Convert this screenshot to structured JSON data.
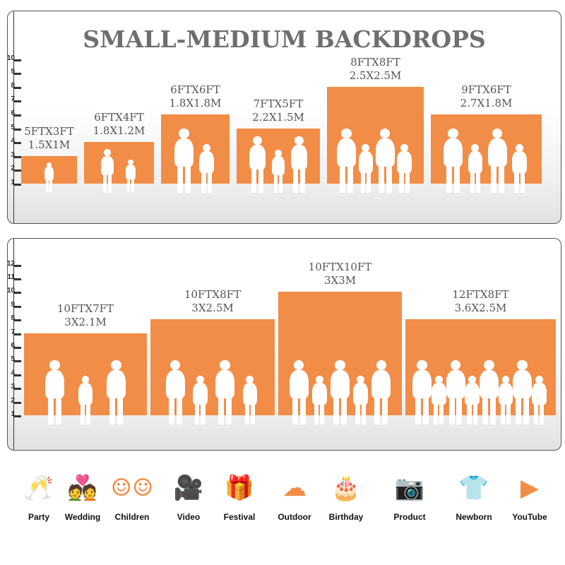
{
  "title": "SMALL-MEDIUM BACKDROPS",
  "accent_color": "#f28d47",
  "panels": [
    {
      "axis_ticks": [
        1,
        2,
        3,
        4,
        5,
        6,
        7,
        8,
        9,
        10
      ],
      "backdrops": [
        {
          "feet": "5FTX3FT",
          "meters": "1.5X1M",
          "height_ft": 3,
          "people": 1
        },
        {
          "feet": "6FTX4FT",
          "meters": "1.8X1.2M",
          "height_ft": 4,
          "people": 2
        },
        {
          "feet": "6FTX6FT",
          "meters": "1.8X1.8M",
          "height_ft": 6,
          "people": 2
        },
        {
          "feet": "7FTX5FT",
          "meters": "2.2X1.5M",
          "height_ft": 5,
          "people": 3
        },
        {
          "feet": "8FTX8FT",
          "meters": "2.5X2.5M",
          "height_ft": 8,
          "people": 4
        },
        {
          "feet": "9FTX6FT",
          "meters": "2.7X1.8M",
          "height_ft": 6,
          "people": 4
        }
      ]
    },
    {
      "axis_ticks": [
        1,
        2,
        3,
        4,
        5,
        6,
        7,
        8,
        9,
        10,
        11,
        12
      ],
      "backdrops": [
        {
          "feet": "10FTX7FT",
          "meters": "3X2.1M",
          "height_ft": 7,
          "people": 3
        },
        {
          "feet": "10FTX8FT",
          "meters": "3X2.5M",
          "height_ft": 8,
          "people": 4
        },
        {
          "feet": "10FTX10FT",
          "meters": "3X3M",
          "height_ft": 10,
          "people": 5
        },
        {
          "feet": "12FTX8FT",
          "meters": "3.6X2.5M",
          "height_ft": 8,
          "people": 8
        }
      ]
    }
  ],
  "uses": [
    {
      "label": "Party",
      "icon": "champagne-glasses-icon",
      "glyph": "🥂"
    },
    {
      "label": "Wedding",
      "icon": "wedding-couple-icon",
      "glyph": "💑"
    },
    {
      "label": "Children",
      "icon": "children-faces-icon",
      "glyph": "☺☺"
    },
    {
      "label": "Video",
      "icon": "film-camera-icon",
      "glyph": "🎥"
    },
    {
      "label": "Festival",
      "icon": "gift-box-icon",
      "glyph": "🎁"
    },
    {
      "label": "Outdoor",
      "icon": "cloud-icon",
      "glyph": "☁"
    },
    {
      "label": "Birthday",
      "icon": "birthday-cake-icon",
      "glyph": "🎂"
    },
    {
      "label": "Product",
      "icon": "camera-icon",
      "glyph": "📷"
    },
    {
      "label": "Newborn",
      "icon": "baby-onesie-icon",
      "glyph": "👕"
    },
    {
      "label": "YouTube",
      "icon": "play-button-icon",
      "glyph": "▶"
    }
  ]
}
